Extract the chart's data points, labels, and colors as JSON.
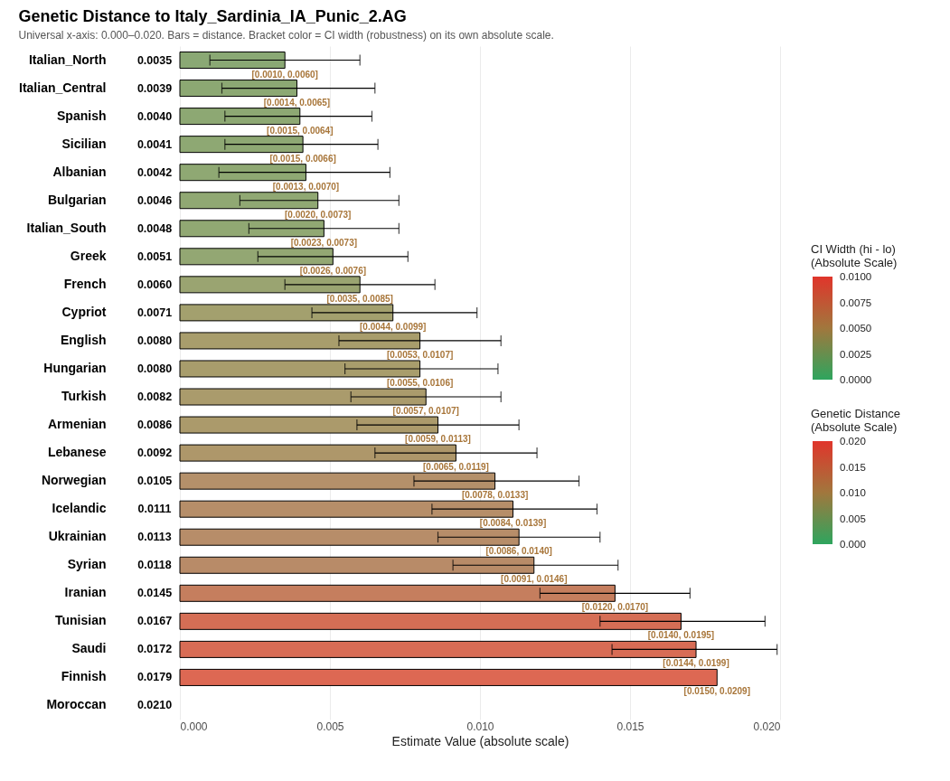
{
  "chart_data": {
    "type": "bar",
    "orientation": "horizontal",
    "title": "Genetic Distance to Italy_Sardinia_IA_Punic_2.AG",
    "subtitle": "Universal x-axis: 0.000–0.020. Bars = distance. Bracket color = CI width (robustness) on its own absolute scale.",
    "xlabel": "Estimate Value (absolute scale)",
    "categories": [
      "Italian_North",
      "Italian_Central",
      "Spanish",
      "Sicilian",
      "Albanian",
      "Bulgarian",
      "Italian_South",
      "Greek",
      "French",
      "Cypriot",
      "English",
      "Hungarian",
      "Turkish",
      "Armenian",
      "Lebanese",
      "Norwegian",
      "Icelandic",
      "Ukrainian",
      "Syrian",
      "Iranian",
      "Tunisian",
      "Saudi",
      "Finnish",
      "Moroccan"
    ],
    "values": [
      0.0035,
      0.0039,
      0.004,
      0.0041,
      0.0042,
      0.0046,
      0.0048,
      0.0051,
      0.006,
      0.0071,
      0.008,
      0.008,
      0.0082,
      0.0086,
      0.0092,
      0.0105,
      0.0111,
      0.0113,
      0.0118,
      0.0145,
      0.0167,
      0.0172,
      0.0179,
      null
    ],
    "value_labels": [
      "0.0035",
      "0.0039",
      "0.0040",
      "0.0041",
      "0.0042",
      "0.0046",
      "0.0048",
      "0.0051",
      "0.0060",
      "0.0071",
      "0.0080",
      "0.0080",
      "0.0082",
      "0.0086",
      "0.0092",
      "0.0105",
      "0.0111",
      "0.0113",
      "0.0118",
      "0.0145",
      "0.0167",
      "0.0172",
      "0.0179",
      "0.0210"
    ],
    "colors": [
      "#8aa874",
      "#8ca873",
      "#8da873",
      "#8ea873",
      "#8fa873",
      "#90a873",
      "#91a873",
      "#93a773",
      "#9aa471",
      "#a3a06e",
      "#a89d6c",
      "#a89d6c",
      "#aa9b6c",
      "#ab9a6b",
      "#ae976a",
      "#b4906a",
      "#b68e69",
      "#b78d69",
      "#b88b68",
      "#c57e5e",
      "#d56e55",
      "#d86c55",
      "#dd6853",
      null
    ],
    "errors": [
      [
        0.001,
        0.006
      ],
      [
        0.0014,
        0.0065
      ],
      [
        0.0015,
        0.0064
      ],
      [
        0.0015,
        0.0066
      ],
      [
        0.0013,
        0.007
      ],
      [
        0.002,
        0.0073
      ],
      [
        0.0023,
        0.0073
      ],
      [
        0.0026,
        0.0076
      ],
      [
        0.0035,
        0.0085
      ],
      [
        0.0044,
        0.0099
      ],
      [
        0.0053,
        0.0107
      ],
      [
        0.0055,
        0.0106
      ],
      [
        0.0057,
        0.0107
      ],
      [
        0.0059,
        0.0113
      ],
      [
        0.0065,
        0.0119
      ],
      [
        0.0078,
        0.0133
      ],
      [
        0.0084,
        0.0139
      ],
      [
        0.0086,
        0.014
      ],
      [
        0.0091,
        0.0146
      ],
      [
        0.012,
        0.017
      ],
      [
        0.014,
        0.0195
      ],
      [
        0.0144,
        0.0199
      ],
      null,
      null
    ],
    "annotations": [
      {
        "text": "[0.0010, 0.0060]",
        "x": 0.0035,
        "y": "Italian_North"
      },
      {
        "text": "[0.0014, 0.0065]",
        "x": 0.0039,
        "y": "Italian_Central"
      },
      {
        "text": "[0.0015, 0.0064]",
        "x": 0.004,
        "y": "Spanish"
      },
      {
        "text": "[0.0015, 0.0066]",
        "x": 0.0041,
        "y": "Sicilian"
      },
      {
        "text": "[0.0013, 0.0070]",
        "x": 0.0042,
        "y": "Albanian"
      },
      {
        "text": "[0.0020, 0.0073]",
        "x": 0.0046,
        "y": "Bulgarian"
      },
      {
        "text": "[0.0023, 0.0073]",
        "x": 0.0048,
        "y": "Italian_South"
      },
      {
        "text": "[0.0026, 0.0076]",
        "x": 0.0051,
        "y": "Greek"
      },
      {
        "text": "[0.0035, 0.0085]",
        "x": 0.006,
        "y": "French"
      },
      {
        "text": "[0.0044, 0.0099]",
        "x": 0.0071,
        "y": "Cypriot"
      },
      {
        "text": "[0.0053, 0.0107]",
        "x": 0.008,
        "y": "English"
      },
      {
        "text": "[0.0055, 0.0106]",
        "x": 0.008,
        "y": "Hungarian"
      },
      {
        "text": "[0.0057, 0.0107]",
        "x": 0.0082,
        "y": "Turkish"
      },
      {
        "text": "[0.0059, 0.0113]",
        "x": 0.0086,
        "y": "Armenian"
      },
      {
        "text": "[0.0065, 0.0119]",
        "x": 0.0092,
        "y": "Lebanese"
      },
      {
        "text": "[0.0078, 0.0133]",
        "x": 0.0105,
        "y": "Norwegian"
      },
      {
        "text": "[0.0084, 0.0139]",
        "x": 0.0111,
        "y": "Icelandic"
      },
      {
        "text": "[0.0086, 0.0140]",
        "x": 0.0113,
        "y": "Ukrainian"
      },
      {
        "text": "[0.0091, 0.0146]",
        "x": 0.0118,
        "y": "Syrian"
      },
      {
        "text": "[0.0120, 0.0170]",
        "x": 0.0145,
        "y": "Iranian"
      },
      {
        "text": "[0.0140, 0.0195]",
        "x": 0.0167,
        "y": "Tunisian"
      },
      {
        "text": "[0.0144, 0.0199]",
        "x": 0.0172,
        "y": "Saudi"
      },
      {
        "text": "[0.0150, 0.0209]",
        "x": 0.0179,
        "y": "Finnish"
      },
      "CI Width (hi - lo)\n(Absolute Scale)",
      "0.0100",
      "0.0075",
      "0.0050",
      "0.0025",
      "0.0000"
    ],
    "clabel": "Genetic Distance\n(Absolute Scale)",
    "clim": [
      0,
      0.02
    ],
    "cticks": [
      {
        "value": 0,
        "label": "0.000"
      },
      0.005,
      {
        "value": 0.01,
        "label": "0.010"
      },
      0.015,
      {
        "value": 0.02,
        "label": "0.020"
      }
    ],
    "xlim": [
      0,
      0.02
    ],
    "xticks": [
      {
        "value": 0,
        "label": "0.000"
      },
      {
        "value": 0.005,
        "label": "0.005"
      },
      {
        "value": 0.01,
        "label": "0.010"
      },
      {
        "value": 0.015,
        "label": "0.015"
      },
      {
        "value": 0.02,
        "label": "0.020"
      }
    ],
    "grid": "x"
  }
}
